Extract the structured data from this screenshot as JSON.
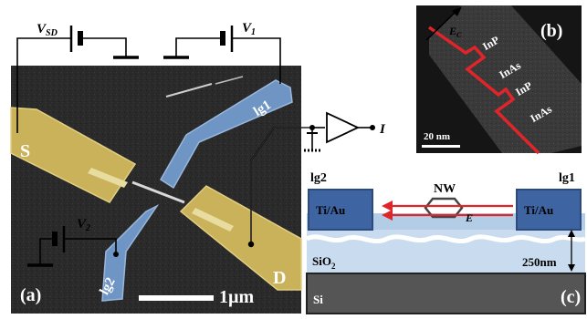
{
  "panel_a": {
    "panel_label": "(a)",
    "source_label": "S",
    "drain_label": "D",
    "gate1_label": "lg1",
    "gate2_label": "lg2",
    "scale_bar_label": "1µm",
    "vsd_symbol": "V",
    "vsd_subscript": "SD",
    "v1_symbol": "V",
    "v1_subscript": "1",
    "v2_symbol": "V",
    "v2_subscript": "2",
    "current_symbol": "I"
  },
  "panel_b": {
    "panel_label": "(b)",
    "field_symbol": "E",
    "field_subscript": "C",
    "segment_labels": [
      "InP",
      "InAs",
      "InP",
      "InAs"
    ],
    "scale_bar_label": "20 nm"
  },
  "panel_c": {
    "panel_label": "(c)",
    "left_gate_title": "lg2",
    "right_gate_title": "lg1",
    "left_contact_label": "Ti/Au",
    "right_contact_label": "Ti/Au",
    "nanowire_label": "NW",
    "field_label": "E",
    "oxide_label_main": "SiO",
    "oxide_label_sub": "2",
    "thickness_label": "250nm",
    "substrate_label": "Si"
  },
  "colors": {
    "source_drain_gold": "#c9b25a",
    "gate_blue": "#6f95c4",
    "sem_background": "#2b2b2b",
    "contact_blue": "#3e64a2",
    "field_arrow_red": "#e0252a",
    "oxide_light_blue": "#c9dcef",
    "substrate_gray": "#555555"
  }
}
